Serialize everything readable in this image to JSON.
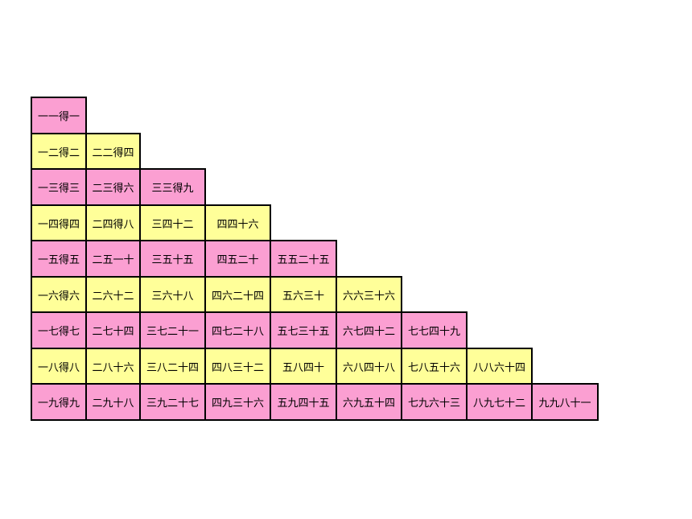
{
  "table": {
    "rows": [
      [
        "一一得一"
      ],
      [
        "一二得二",
        "二二得四"
      ],
      [
        "一三得三",
        "二三得六",
        "三三得九"
      ],
      [
        "一四得四",
        "二四得八",
        "三四十二",
        "四四十六"
      ],
      [
        "一五得五",
        "二五一十",
        "三五十五",
        "四五二十",
        "五五二十五"
      ],
      [
        "一六得六",
        "二六十二",
        "三六十八",
        "四六二十四",
        "五六三十",
        "六六三十六"
      ],
      [
        "一七得七",
        "二七十四",
        "三七二十一",
        "四七二十八",
        "五七三十五",
        "六七四十二",
        "七七四十九"
      ],
      [
        "一八得八",
        "二八十六",
        "三八二十四",
        "四八三十二",
        "五八四十",
        "六八四十八",
        "七八五十六",
        "八八六十四"
      ],
      [
        "一九得九",
        "二九十八",
        "三九二十七",
        "四九三十六",
        "五九四十五",
        "六九五十四",
        "七九六十三",
        "八九七十二",
        "九九八十一"
      ]
    ]
  }
}
